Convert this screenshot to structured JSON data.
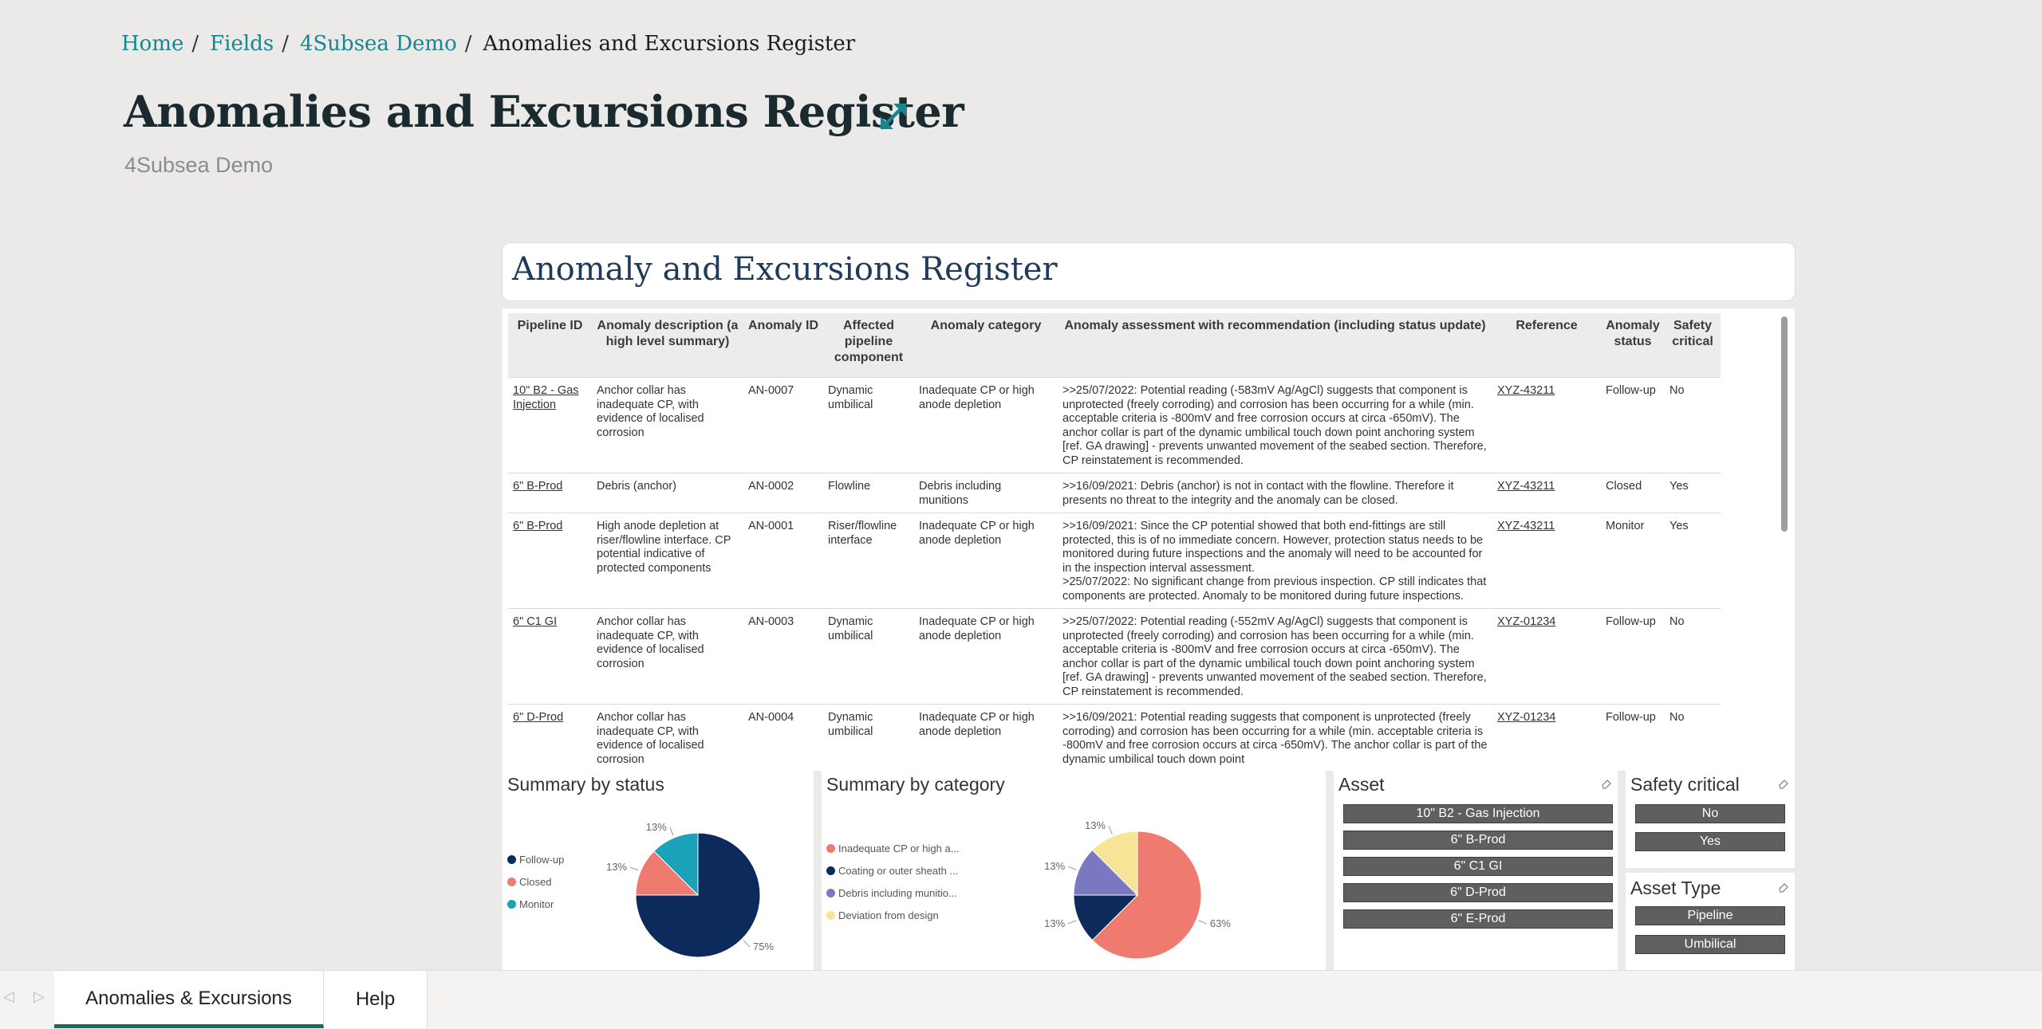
{
  "breadcrumb": {
    "home": "Home",
    "fields": "Fields",
    "field": "4Subsea Demo",
    "current": "Anomalies and Excursions Register"
  },
  "page": {
    "title": "Anomalies and Excursions Register",
    "subtitle": "4Subsea Demo"
  },
  "report": {
    "title": "Anomaly and Excursions Register",
    "table": {
      "headers": [
        "Pipeline ID",
        "Anomaly description (a high level summary)",
        "Anomaly ID",
        "Affected pipeline component",
        "Anomaly category",
        "Anomaly assessment with recommendation (including status update)",
        "Reference",
        "Anomaly status",
        "Safety critical"
      ],
      "rows": [
        {
          "pipeline": "10\" B2 - Gas Injection",
          "description": "Anchor collar has inadequate CP, with evidence of localised corrosion",
          "id": "AN-0007",
          "component": "Dynamic umbilical",
          "category": "Inadequate CP or high anode depletion",
          "assessment": ">>25/07/2022: Potential reading (-583mV Ag/AgCl) suggests that component is unprotected (freely corroding) and corrosion has been occurring for a while (min. acceptable criteria is -800mV and free corrosion occurs at circa -650mV). The anchor collar is part of the dynamic umbilical touch down point anchoring system [ref. GA drawing] - prevents unwanted movement of the seabed section. Therefore, CP reinstatement is recommended.",
          "reference": "XYZ-43211",
          "status": "Follow-up",
          "safety": "No"
        },
        {
          "pipeline": "6\" B-Prod",
          "description": "Debris (anchor)",
          "id": "AN-0002",
          "component": "Flowline",
          "category": "Debris including munitions",
          "assessment": ">>16/09/2021: Debris (anchor) is not in contact with the flowline. Therefore it presents no threat to the integrity and the anomaly can be closed.",
          "reference": "XYZ-43211",
          "status": "Closed",
          "safety": "Yes"
        },
        {
          "pipeline": "6\" B-Prod",
          "description": "High anode depletion at riser/flowline interface. CP potential indicative of protected components",
          "id": "AN-0001",
          "component": "Riser/flowline interface",
          "category": "Inadequate CP or high anode depletion",
          "assessment": ">>16/09/2021: Since the CP potential showed that both end-fittings are still protected, this is of no immediate concern. However, protection status needs to be monitored during future inspections and the anomaly will need to be accounted for in the inspection interval assessment.\n>25/07/2022: No significant change from previous inspection. CP still indicates that components are protected. Anomaly to be monitored during future inspections.",
          "reference": "XYZ-43211",
          "status": "Monitor",
          "safety": "Yes"
        },
        {
          "pipeline": "6\" C1 GI",
          "description": "Anchor collar has inadequate CP, with evidence of localised corrosion",
          "id": "AN-0003",
          "component": "Dynamic umbilical",
          "category": "Inadequate CP or high anode depletion",
          "assessment": ">>25/07/2022: Potential reading (-552mV Ag/AgCl) suggests that component is unprotected (freely corroding) and corrosion has been occurring for a while (min. acceptable criteria is -800mV and free corrosion occurs at circa -650mV). The anchor collar is part of the dynamic umbilical touch down point anchoring system [ref. GA drawing] - prevents unwanted movement of the seabed section. Therefore, CP reinstatement is recommended.",
          "reference": "XYZ-01234",
          "status": "Follow-up",
          "safety": "No"
        },
        {
          "pipeline": "6\" D-Prod",
          "description": "Anchor collar has inadequate CP, with evidence of localised corrosion",
          "id": "AN-0004",
          "component": "Dynamic umbilical",
          "category": "Inadequate CP or high anode depletion",
          "assessment": ">>16/09/2021: Potential reading suggests that component is unprotected (freely corroding) and corrosion has been occurring for a while (min. acceptable criteria is -800mV and free corrosion occurs at circa -650mV). The anchor collar is part of the dynamic umbilical touch down point",
          "reference": "XYZ-01234",
          "status": "Follow-up",
          "safety": "No"
        }
      ]
    },
    "summary_status": {
      "title": "Summary by status",
      "legend": [
        "Follow-up",
        "Closed",
        "Monitor"
      ],
      "labels": [
        "75%",
        "13%",
        "13%"
      ]
    },
    "summary_category": {
      "title": "Summary by category",
      "legend": [
        "Inadequate CP or high a...",
        "Coating or outer sheath ...",
        "Debris including munitio...",
        "Deviation from design"
      ],
      "labels": [
        "63%",
        "13%",
        "13%",
        "13%"
      ]
    },
    "asset_slicer": {
      "title": "Asset",
      "options": [
        "10\" B2 - Gas Injection",
        "6\" B-Prod",
        "6\" C1 GI",
        "6\" D-Prod",
        "6\" E-Prod"
      ]
    },
    "safety_slicer": {
      "title": "Safety critical",
      "options": [
        "No",
        "Yes"
      ]
    },
    "type_slicer": {
      "title": "Asset Type",
      "options": [
        "Pipeline",
        "Umbilical"
      ]
    }
  },
  "chart_data": [
    {
      "type": "pie",
      "title": "Summary by status",
      "categories": [
        "Follow-up",
        "Closed",
        "Monitor"
      ],
      "values": [
        75,
        12.5,
        12.5
      ],
      "colors": [
        "#0d2a5c",
        "#ef7b70",
        "#1ba2b8"
      ]
    },
    {
      "type": "pie",
      "title": "Summary by category",
      "categories": [
        "Inadequate CP or high a...",
        "Coating or outer sheath ...",
        "Debris including munitio...",
        "Deviation from design"
      ],
      "values": [
        62.5,
        12.5,
        12.5,
        12.5
      ],
      "colors": [
        "#ef7b70",
        "#0d2a5c",
        "#7a78c0",
        "#f6e597"
      ]
    }
  ],
  "tabs": [
    "Anomalies & Excursions",
    "Help"
  ],
  "colors": {
    "accent": "#16878f",
    "tab_active": "#1a6b63",
    "slicer": "#5f5f5f"
  }
}
